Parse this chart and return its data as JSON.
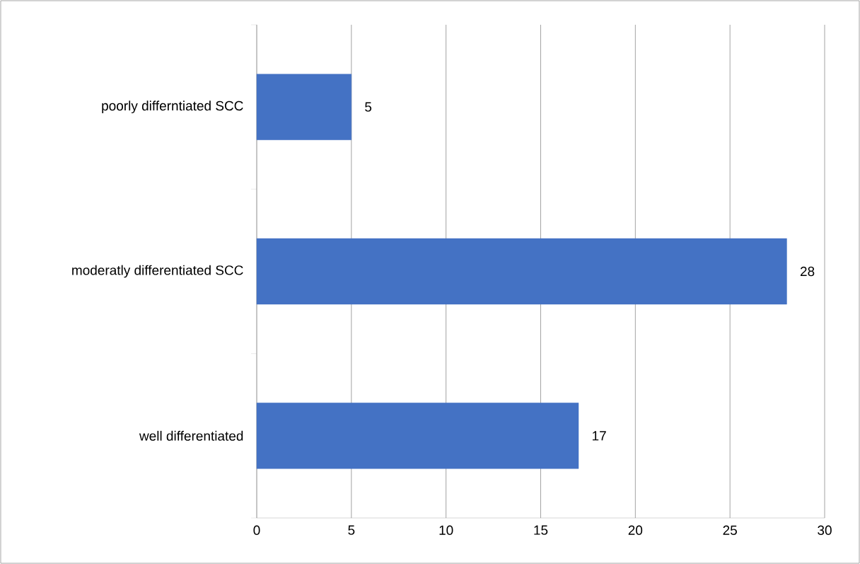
{
  "chart_data": {
    "type": "bar",
    "orientation": "horizontal",
    "categories": [
      "poorly differntiated SCC",
      "moderatly differentiated SCC",
      "well differentiated"
    ],
    "values": [
      5,
      28,
      17
    ],
    "color": "#4472c4",
    "xlim": [
      0,
      30
    ],
    "xticks": [
      0,
      5,
      10,
      15,
      20,
      25,
      30
    ],
    "grid": "x",
    "data_labels": true
  }
}
